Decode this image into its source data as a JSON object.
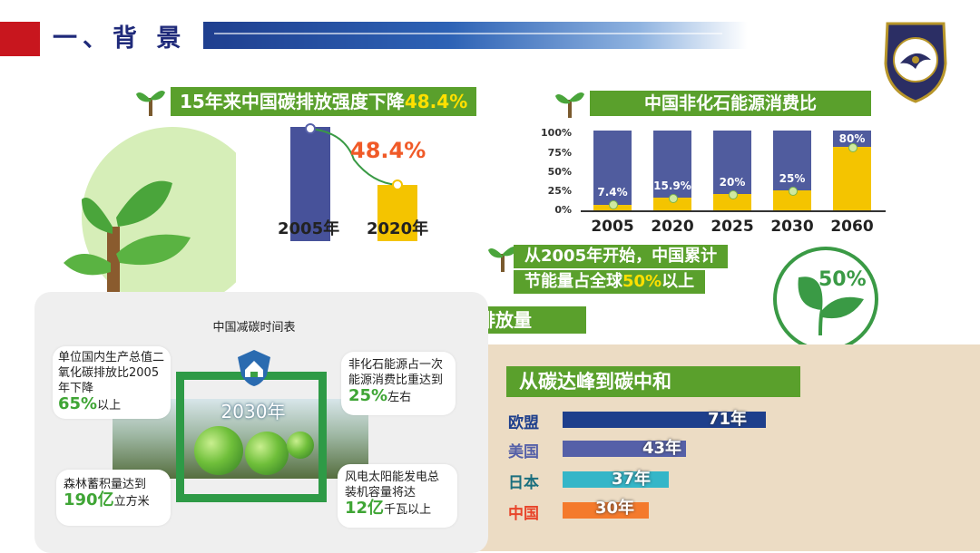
{
  "header": {
    "section_title": "一、背 景"
  },
  "intensity": {
    "banner_text": "15年来中国碳排放强度下降",
    "banner_highlight": "48.4%",
    "drop_label": "48.4%",
    "year_start": "2005年",
    "year_end": "2020年"
  },
  "nonfossil": {
    "banner_text": "中国非化石能源消费比"
  },
  "savings": {
    "line1": "从2005年开始，中国累计",
    "line2_pre": "节能量占全球",
    "line2_highlight": "50%",
    "line2_post": "以上",
    "badge": "50%"
  },
  "emissions": {
    "banner_text": "排放量"
  },
  "peak": {
    "banner_text": "从碳达峰到碳中和",
    "rows": [
      {
        "country": "欧盟",
        "years": "71年",
        "value": 71,
        "color": "#1e3f8c",
        "label_color": "#1e3f8c"
      },
      {
        "country": "美国",
        "years": "43年",
        "value": 43,
        "color": "#5560a8",
        "label_color": "#5560a8"
      },
      {
        "country": "日本",
        "years": "37年",
        "value": 37,
        "color": "#35b6c8",
        "label_color": "#1b6f7e"
      },
      {
        "country": "中国",
        "years": "30年",
        "value": 30,
        "color": "#f47a2c",
        "label_color": "#e8442a"
      }
    ]
  },
  "timeline": {
    "title": "中国减碳时间表",
    "year_label": "2030年",
    "card1": {
      "text": "单位国内生产总值二氧化碳排放比2005年下降",
      "value": "65%",
      "unit": "以上"
    },
    "card2": {
      "text": "非化石能源占一次能源消费比重达到",
      "value": "25%",
      "unit": "左右"
    },
    "card3": {
      "text": "森林蓄积量达到",
      "value": "190亿",
      "unit": "立方米"
    },
    "card4": {
      "text": "风电太阳能发电总装机容量将达",
      "value": "12亿",
      "unit": "千瓦以上"
    }
  },
  "chart_data": [
    {
      "type": "bar",
      "categories": [
        "2005年",
        "2020年"
      ],
      "values": [
        100,
        51.6
      ],
      "annotations": [
        "48.4%"
      ]
    },
    {
      "type": "bar",
      "categories": [
        "2005",
        "2020",
        "2025",
        "2030",
        "2060"
      ],
      "yticks": [
        "100%",
        "75%",
        "50%",
        "25%",
        "0%"
      ],
      "ylim": [
        0,
        100
      ],
      "values": [
        7.4,
        15.9,
        20,
        25,
        80
      ],
      "labels": [
        "7.4%",
        "15.9%",
        "20%",
        "25%",
        "80%"
      ]
    }
  ],
  "colors": {
    "brand_green": "#5aa02c",
    "highlight_yellow": "#ffe000",
    "header_red": "#c8161e",
    "navy": "#1f2a7a"
  }
}
